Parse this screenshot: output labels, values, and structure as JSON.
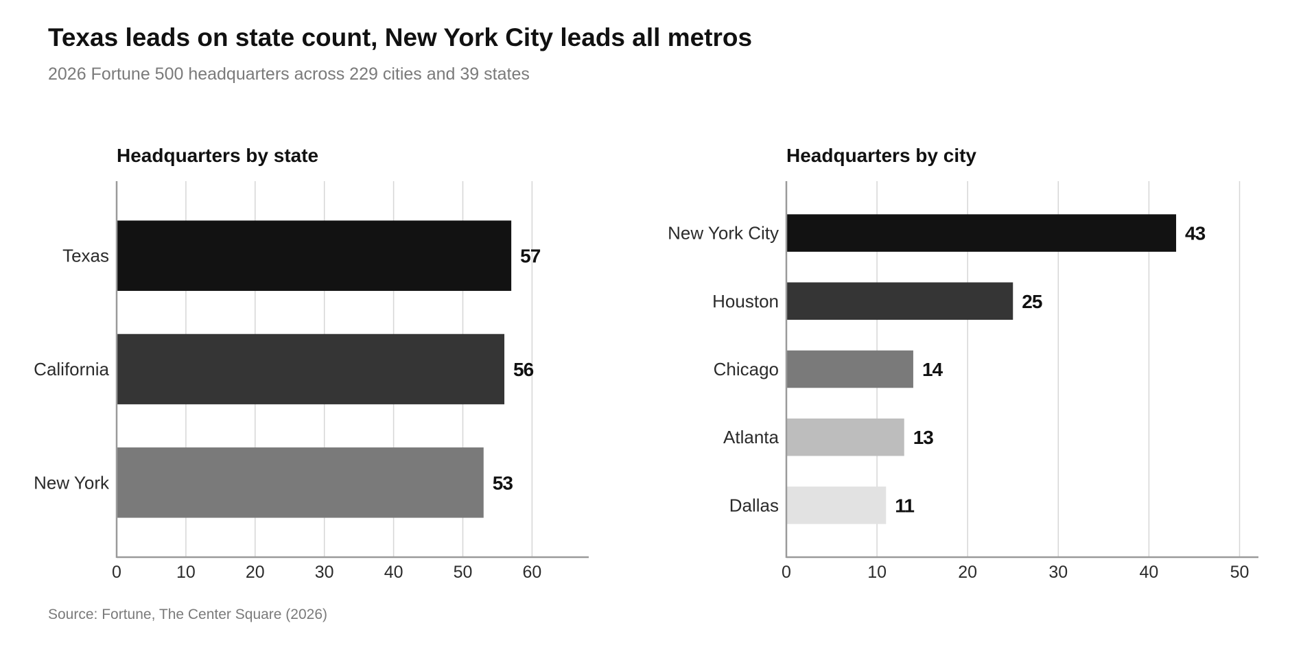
{
  "title": "Texas leads on state count, New York City leads all metros",
  "subtitle": "2026 Fortune 500 headquarters across 229 cities and 39 states",
  "source": "Source: Fortune, The Center Square (2026)",
  "chart_data": [
    {
      "type": "bar",
      "orientation": "horizontal",
      "title": "Headquarters by state",
      "categories": [
        "Texas",
        "California",
        "New York"
      ],
      "values": [
        57,
        56,
        53
      ],
      "colors": [
        "#121212",
        "#353535",
        "#7a7a7a"
      ],
      "xlim": [
        0,
        68
      ],
      "xticks": [
        0,
        10,
        20,
        30,
        40,
        50,
        60
      ],
      "grid": true
    },
    {
      "type": "bar",
      "orientation": "horizontal",
      "title": "Headquarters by city",
      "categories": [
        "New York City",
        "Houston",
        "Chicago",
        "Atlanta",
        "Dallas"
      ],
      "values": [
        43,
        25,
        14,
        13,
        11
      ],
      "colors": [
        "#121212",
        "#353535",
        "#7a7a7a",
        "#bdbdbd",
        "#e2e2e2"
      ],
      "xlim": [
        0,
        52
      ],
      "xticks": [
        0,
        10,
        20,
        30,
        40,
        50
      ],
      "grid": true
    }
  ]
}
